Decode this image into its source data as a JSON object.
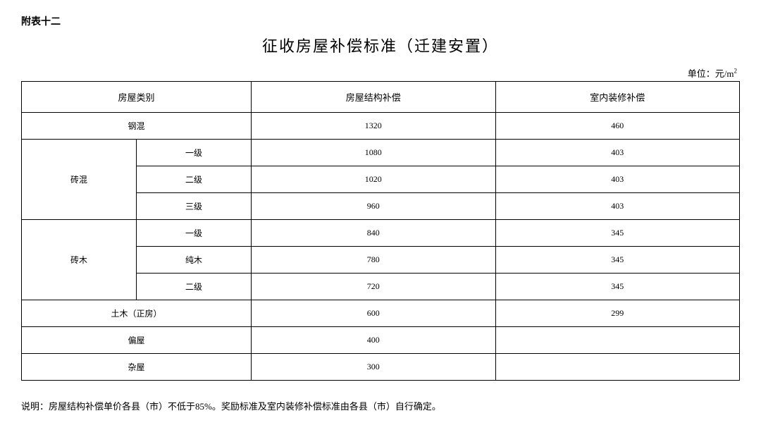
{
  "annex_label": "附表十二",
  "title": "征收房屋补偿标准（迁建安置）",
  "unit_prefix": "单位：元/m",
  "unit_sup": "2",
  "headers": {
    "category": "房屋类别",
    "structure_compensation": "房屋结构补偿",
    "interior_compensation": "室内装修补偿"
  },
  "rows": {
    "r0": {
      "cat": "钢混",
      "struct": "1320",
      "deco": "460"
    },
    "r1_group": "砖混",
    "r1": {
      "sub": "一级",
      "struct": "1080",
      "deco": "403"
    },
    "r2": {
      "sub": "二级",
      "struct": "1020",
      "deco": "403"
    },
    "r3": {
      "sub": "三级",
      "struct": "960",
      "deco": "403"
    },
    "r4_group": "砖木",
    "r4": {
      "sub": "一级",
      "struct": "840",
      "deco": "345"
    },
    "r5": {
      "sub": "纯木",
      "struct": "780",
      "deco": "345"
    },
    "r6": {
      "sub": "二级",
      "struct": "720",
      "deco": "345"
    },
    "r7": {
      "cat": "土木（正房）",
      "struct": "600",
      "deco": "299"
    },
    "r8": {
      "cat": "偏屋",
      "struct": "400",
      "deco": ""
    },
    "r9": {
      "cat": "杂屋",
      "struct": "300",
      "deco": ""
    }
  },
  "note": "说明：房屋结构补偿单价各县（市）不低于85%。奖励标准及室内装修补偿标准由各县（市）自行确定。"
}
